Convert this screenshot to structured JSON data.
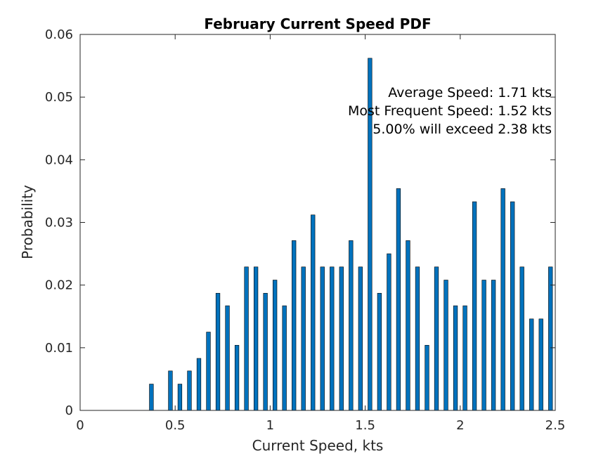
{
  "chart_data": {
    "type": "bar",
    "title": "February Current Speed PDF",
    "xlabel": "Current Speed, kts",
    "ylabel": "Probability",
    "xlim": [
      0,
      2.5
    ],
    "ylim": [
      0,
      0.06
    ],
    "xticks": [
      0,
      0.5,
      1,
      1.5,
      2,
      2.5
    ],
    "xtick_labels": [
      "0",
      "0.5",
      "1",
      "1.5",
      "2",
      "2.5"
    ],
    "yticks": [
      0,
      0.01,
      0.02,
      0.03,
      0.04,
      0.05,
      0.06
    ],
    "ytick_labels": [
      "0",
      "0.01",
      "0.02",
      "0.03",
      "0.04",
      "0.05",
      "0.06"
    ],
    "grid": false,
    "bar_color": "#0072BD",
    "x": [
      0.375,
      0.475,
      0.525,
      0.575,
      0.625,
      0.675,
      0.725,
      0.775,
      0.825,
      0.875,
      0.925,
      0.975,
      1.025,
      1.075,
      1.125,
      1.175,
      1.225,
      1.275,
      1.325,
      1.375,
      1.425,
      1.475,
      1.525,
      1.575,
      1.625,
      1.675,
      1.725,
      1.775,
      1.825,
      1.875,
      1.925,
      1.975,
      2.025,
      2.075,
      2.125,
      2.175,
      2.225,
      2.275,
      2.325,
      2.375,
      2.425,
      2.475
    ],
    "values": [
      0.0042,
      0.0063,
      0.0042,
      0.0063,
      0.0083,
      0.0125,
      0.0187,
      0.0167,
      0.0104,
      0.0229,
      0.0229,
      0.0187,
      0.0208,
      0.0167,
      0.0271,
      0.0229,
      0.0312,
      0.0229,
      0.0229,
      0.0229,
      0.0271,
      0.0229,
      0.0562,
      0.0187,
      0.025,
      0.0354,
      0.0271,
      0.0229,
      0.0104,
      0.0229,
      0.0208,
      0.0167,
      0.0167,
      0.0333,
      0.0208,
      0.0208,
      0.0354,
      0.0333,
      0.0229,
      0.0146,
      0.0146,
      0.0229
    ],
    "annotations": [
      "Average Speed: 1.71 kts",
      "Most Frequent Speed: 1.52 kts",
      "5.00% will exceed 2.38 kts"
    ]
  }
}
